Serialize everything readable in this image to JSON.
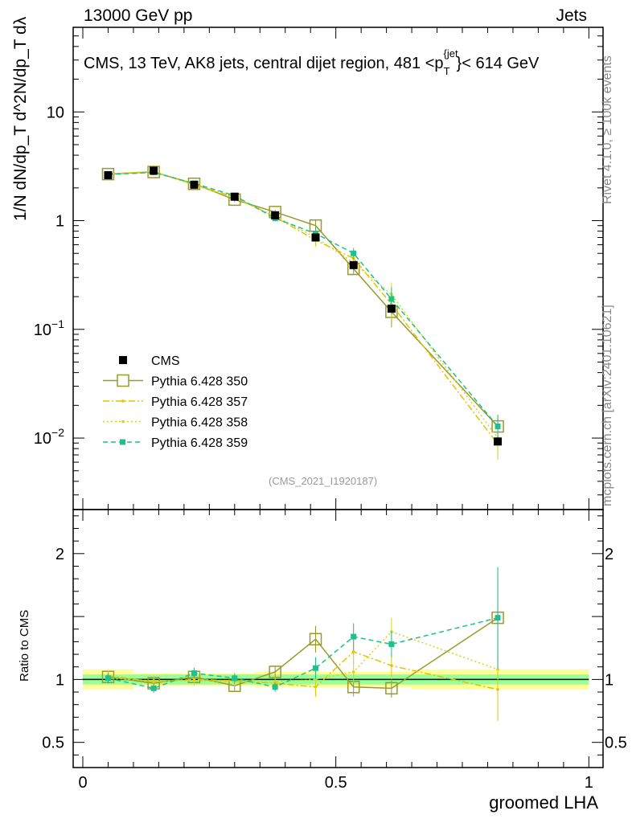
{
  "header": {
    "left": "13000 GeV pp",
    "right": "Jets",
    "subtitle": "CMS, 13 TeV, AK8 jets, central dijet region, 481 <p_T^{jet}< 614 GeV",
    "subtitle_main": "CMS, 13 TeV, AK8 jets, central dijet region, 481 <p",
    "subtitle_sup": "{jet",
    "subtitle_sub": "T",
    "subtitle_end": "}< 614 GeV"
  },
  "side_labels": {
    "rivet": "Rivet 4.1.0, ≥ 100k events",
    "mcplots": "mcplots.cern.ch [arXiv:2401.10621]"
  },
  "watermark": "(CMS_2021_I1920187)",
  "y_title_main": "1/N dN/dp_T d^2N/dp_T dλ",
  "ratio_ylabel": "Ratio to CMS",
  "chart_data": [
    {
      "type": "line",
      "panel": "main",
      "ylog": true,
      "xlim": [
        0,
        1
      ],
      "ylim": [
        0.0022,
        60
      ],
      "xlabel": "groomed LHA",
      "ylabel": "1/N dN/dp_T d^2N/dp_T dλ",
      "yticks": [
        {
          "value": 0.01,
          "label": "10^-2"
        },
        {
          "value": 0.1,
          "label": "10^-1"
        },
        {
          "value": 1,
          "label": "1"
        },
        {
          "value": 10,
          "label": "10"
        }
      ],
      "xticks": [],
      "x": [
        0.05,
        0.14,
        0.22,
        0.3,
        0.38,
        0.46,
        0.535,
        0.61,
        0.82
      ],
      "series": [
        {
          "name": "CMS",
          "color": "#000000",
          "style": "marker-square",
          "values": [
            2.62,
            2.88,
            2.14,
            1.66,
            1.12,
            0.7,
            0.39,
            0.155,
            0.0093
          ]
        },
        {
          "name": "Pythia 6.428 350",
          "color": "#9a9a2a",
          "style": "solid-open-square",
          "values": [
            2.68,
            2.8,
            2.18,
            1.56,
            1.2,
            0.9,
            0.36,
            0.145,
            0.0128
          ]
        },
        {
          "name": "Pythia 6.428 357",
          "color": "#e8c000",
          "style": "dashdot",
          "values": [
            2.7,
            2.82,
            2.15,
            1.65,
            1.08,
            0.66,
            0.45,
            0.17,
            0.0088
          ]
        },
        {
          "name": "Pythia 6.428 358",
          "color": "#d4d420",
          "style": "dotted",
          "values": [
            2.65,
            2.85,
            2.12,
            1.62,
            1.1,
            0.7,
            0.41,
            0.21,
            0.01
          ]
        },
        {
          "name": "Pythia 6.428 359",
          "color": "#1fc08a",
          "style": "dashed-filled-square",
          "values": [
            2.66,
            2.78,
            2.2,
            1.7,
            1.05,
            0.76,
            0.5,
            0.19,
            0.0128
          ]
        }
      ]
    },
    {
      "type": "line",
      "panel": "ratio",
      "xlim": [
        0,
        1
      ],
      "ylim": [
        0.3,
        2.35
      ],
      "xlabel": "groomed LHA",
      "ylabel": "Ratio to CMS",
      "yticks": [
        {
          "value": 0.5,
          "label": "0.5"
        },
        {
          "value": 1,
          "label": "1"
        },
        {
          "value": 2,
          "label": "2"
        }
      ],
      "xticks": [
        {
          "value": 0,
          "label": "0"
        },
        {
          "value": 0.5,
          "label": "0.5"
        },
        {
          "value": 1,
          "label": "1"
        }
      ],
      "reference_line": 1,
      "bands": [
        {
          "name": "CMS total uncertainty",
          "color": "#ffff99",
          "bins": [
            [
              0.0,
              0.1,
              0.92,
              1.08
            ],
            [
              0.1,
              0.34,
              0.95,
              1.05
            ],
            [
              0.34,
              0.65,
              0.94,
              1.06
            ],
            [
              0.65,
              1.0,
              0.92,
              1.08
            ]
          ]
        },
        {
          "name": "CMS stat uncertainty",
          "color": "#99ff99",
          "bins": [
            [
              0.0,
              1.0,
              0.96,
              1.04
            ]
          ]
        }
      ],
      "x": [
        0.05,
        0.14,
        0.22,
        0.3,
        0.38,
        0.46,
        0.535,
        0.61,
        0.82
      ],
      "series": [
        {
          "name": "Pythia 6.428 350",
          "color": "#9a9a2a",
          "style": "solid-open-square",
          "values": [
            1.02,
            0.97,
            1.02,
            0.95,
            1.06,
            1.32,
            0.94,
            0.93,
            1.49
          ]
        },
        {
          "name": "Pythia 6.428 357",
          "color": "#e8c000",
          "style": "dashdot",
          "values": [
            1.03,
            0.98,
            1.0,
            0.99,
            0.97,
            0.94,
            1.22,
            1.11,
            0.92
          ]
        },
        {
          "name": "Pythia 6.428 358",
          "color": "#d4d420",
          "style": "dotted",
          "values": [
            1.01,
            0.99,
            0.99,
            0.98,
            0.98,
            1.0,
            1.06,
            1.38,
            1.08
          ]
        },
        {
          "name": "Pythia 6.428 359",
          "color": "#1fc08a",
          "style": "dashed-filled-square",
          "values": [
            1.01,
            0.93,
            1.05,
            1.01,
            0.94,
            1.09,
            1.34,
            1.28,
            1.49
          ]
        }
      ]
    }
  ]
}
